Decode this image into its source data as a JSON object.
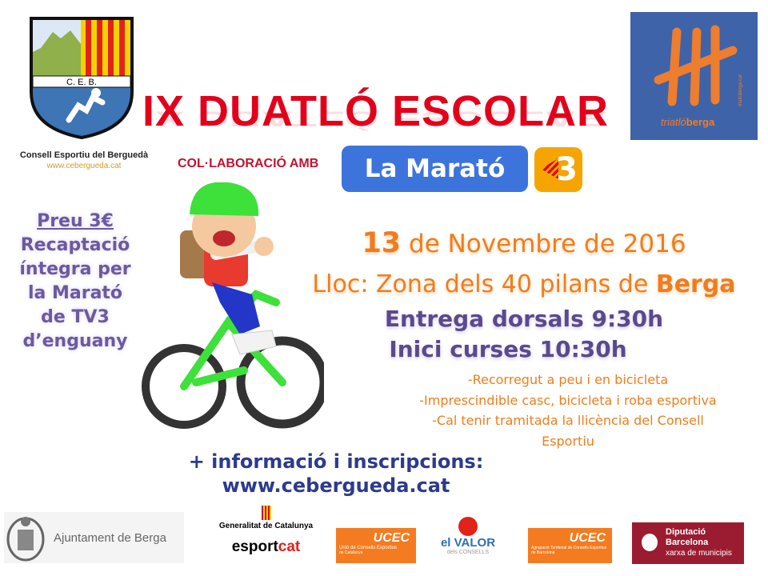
{
  "ceb_logo": {
    "initials": "C. E. B.",
    "name": "Consell Esportiu del Berguedà",
    "url": "www.cebergueda.cat"
  },
  "title": "IX DUATLÓ ESCOLAR",
  "collaboration": {
    "label": "COL·LABORACIÓ AMB",
    "marato": "La Marató",
    "tv3": "3"
  },
  "triatlo_logo": {
    "text_a": "triatló",
    "text_b": "berga",
    "side_text": "triatloberga.cat"
  },
  "price_block": {
    "price": "Preu 3€",
    "lines": [
      "Recaptació",
      "íntegra per",
      "la Marató",
      "de TV3",
      "d’enguany"
    ]
  },
  "event": {
    "day": "13",
    "date_rest": " de Novembre de 2016",
    "place_prefix": "Lloc: Zona dels 40 pilans de ",
    "place_town": "Berga",
    "bib_pickup": "Entrega dorsals 9:30h",
    "race_start": "Inici curses 10:30h",
    "notes": [
      "-Recorregut a peu i en bicicleta",
      "-Imprescindible casc, bicicleta i roba esportiva",
      "-Cal tenir tramitada la llicència del Consell",
      "Esportiu"
    ]
  },
  "info": {
    "line1": "+ informació i inscripcions:",
    "line2": "www.cebergueda.cat"
  },
  "sponsors": {
    "ajuntament": "Ajuntament de Berga",
    "generalitat": "Generalitat de Catalunya",
    "esportcat_a": "esport",
    "esportcat_b": "cat",
    "ucec1": {
      "name": "UCEC",
      "sub": "Unió de Consells Esportius",
      "sub2": "de Catalunya"
    },
    "elvalor": {
      "a": "el ",
      "b": "VALOR",
      "sub": "dels CONSELLS"
    },
    "ucec2": {
      "name": "UCEC",
      "sub": "Agrupació Territorial de Consells Esportius",
      "sub2": "de Barcelona"
    },
    "diputacio": {
      "l1": "Diputació",
      "l2": "Barcelona",
      "l3": "xarxa de municipis"
    }
  },
  "colors": {
    "title_red": "#e3001b",
    "marato_blue": "#3d74dc",
    "tv3_orange": "#f6a400",
    "orange_text": "#f07d1c",
    "purple_text": "#5a4a8c",
    "navy": "#2c3b8c",
    "triatlo_bg": "#3f63a8"
  }
}
